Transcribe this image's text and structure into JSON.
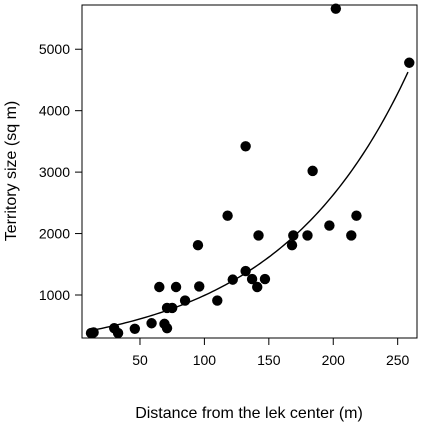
{
  "chart_data": {
    "type": "scatter",
    "title": "",
    "xlabel": "Distance from the lek center (m)",
    "ylabel": "Territory size (sq m)",
    "xlim": [
      5,
      265
    ],
    "ylim": [
      300,
      5720
    ],
    "xticks": [
      50,
      100,
      150,
      200,
      250
    ],
    "yticks": [
      1000,
      2000,
      3000,
      4000,
      5000
    ],
    "xtick_labels": [
      "50",
      "100",
      "150",
      "200",
      "250"
    ],
    "ytick_labels": [
      "1000",
      "2000",
      "3000",
      "4000",
      "5000"
    ],
    "grid": false,
    "legend": "none",
    "point_color": "#000000",
    "points": [
      {
        "x": 12,
        "y": 380
      },
      {
        "x": 14,
        "y": 390
      },
      {
        "x": 30,
        "y": 460
      },
      {
        "x": 33,
        "y": 380
      },
      {
        "x": 46,
        "y": 450
      },
      {
        "x": 59,
        "y": 540
      },
      {
        "x": 65,
        "y": 1130
      },
      {
        "x": 69,
        "y": 530
      },
      {
        "x": 71,
        "y": 460
      },
      {
        "x": 71,
        "y": 790
      },
      {
        "x": 75,
        "y": 790
      },
      {
        "x": 78,
        "y": 1130
      },
      {
        "x": 85,
        "y": 910
      },
      {
        "x": 95,
        "y": 1810
      },
      {
        "x": 96,
        "y": 1140
      },
      {
        "x": 110,
        "y": 910
      },
      {
        "x": 118,
        "y": 2290
      },
      {
        "x": 122,
        "y": 1250
      },
      {
        "x": 132,
        "y": 3420
      },
      {
        "x": 132,
        "y": 1390
      },
      {
        "x": 137,
        "y": 1260
      },
      {
        "x": 141,
        "y": 1130
      },
      {
        "x": 142,
        "y": 1970
      },
      {
        "x": 147,
        "y": 1260
      },
      {
        "x": 168,
        "y": 1810
      },
      {
        "x": 169,
        "y": 1970
      },
      {
        "x": 180,
        "y": 1970
      },
      {
        "x": 184,
        "y": 3020
      },
      {
        "x": 197,
        "y": 2130
      },
      {
        "x": 202,
        "y": 5660
      },
      {
        "x": 214,
        "y": 1970
      },
      {
        "x": 218,
        "y": 2290
      },
      {
        "x": 259,
        "y": 4780
      }
    ],
    "fit_curve": {
      "type": "exponential",
      "x_range": [
        12,
        258
      ],
      "a": 375,
      "b": 0.00974
    }
  }
}
